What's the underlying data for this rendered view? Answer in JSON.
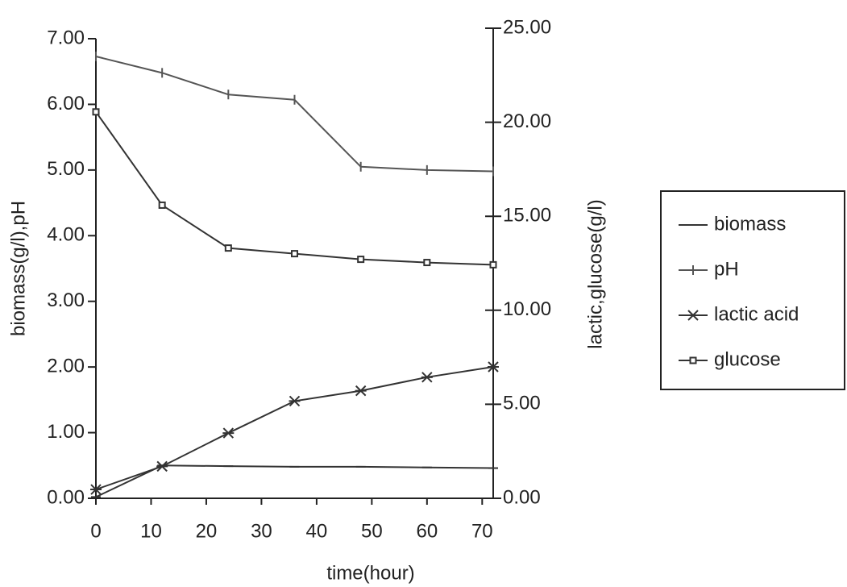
{
  "chart_data": {
    "type": "line",
    "x_label": "time(hour)",
    "y_label": "biomass(g/l),pH",
    "y2_label": "lactic,glucose(g/l)",
    "x": [
      0,
      12,
      24,
      36,
      48,
      60,
      72
    ],
    "xlim": [
      0,
      72
    ],
    "xticks": [
      0,
      10,
      20,
      30,
      40,
      50,
      60,
      70
    ],
    "ylim": [
      0,
      7
    ],
    "yticks": [
      {
        "value": 0,
        "label": "0.00"
      },
      {
        "value": 1,
        "label": "1.00"
      },
      {
        "value": 2,
        "label": "2.00"
      },
      {
        "value": 3,
        "label": "3.00"
      },
      {
        "value": 4,
        "label": "4.00"
      },
      {
        "value": 5,
        "label": "5.00"
      },
      {
        "value": 6,
        "label": "6.00"
      },
      {
        "value": 7,
        "label": "7.00"
      }
    ],
    "y2lim": [
      0,
      25
    ],
    "y2ticks": [
      {
        "value": 0,
        "label": "0.00"
      },
      {
        "value": 5,
        "label": "5.00"
      },
      {
        "value": 10,
        "label": "10.00"
      },
      {
        "value": 15,
        "label": "15.00"
      },
      {
        "value": 20,
        "label": "20.00"
      },
      {
        "value": 25,
        "label": "25.00"
      }
    ],
    "legend": "right",
    "series": [
      {
        "name": "biomass",
        "color": "#333333",
        "marker": "dash",
        "values": [
          0.02,
          0.5,
          0.49,
          0.48,
          0.48,
          0.47,
          0.46
        ]
      },
      {
        "name": "pH",
        "color": "#555555",
        "marker": "tick",
        "values": [
          6.73,
          6.48,
          6.15,
          6.07,
          5.05,
          5.0,
          4.98
        ]
      },
      {
        "name": "lactic acid",
        "color": "#333333",
        "marker": "x",
        "axis": "y2",
        "values": [
          0.47,
          1.7,
          3.47,
          5.17,
          5.72,
          6.44,
          6.99
        ]
      },
      {
        "name": "glucose",
        "color": "#333333",
        "marker": "square",
        "axis": "y2",
        "values": [
          20.55,
          15.59,
          13.31,
          13.01,
          12.71,
          12.54,
          12.42
        ]
      }
    ]
  }
}
